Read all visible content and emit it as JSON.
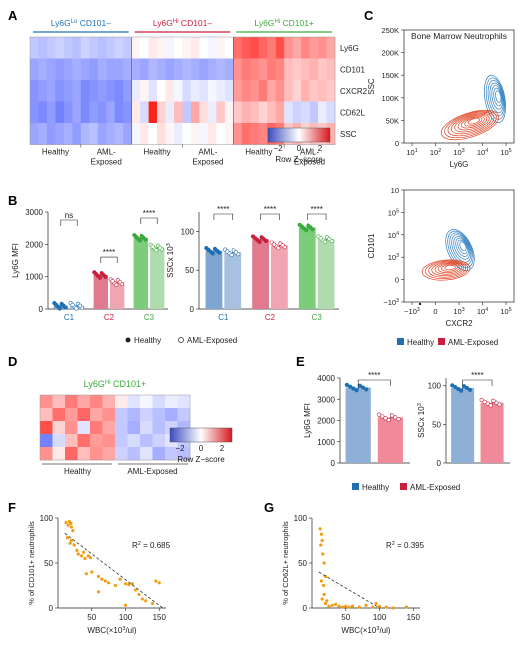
{
  "panel_letters": {
    "a": "A",
    "b": "B",
    "c": "C",
    "d": "D",
    "e": "E",
    "f": "F",
    "g": "G"
  },
  "colors": {
    "blue": "#1f6fb4",
    "red": "#c8203a",
    "green": "#3aaa3a",
    "bar_blue": "#8fb0d6",
    "bar_red": "#f08a9a",
    "bar_green": "#8fd08f",
    "orange": "#f39c12",
    "heat_low": "#3b4cc0",
    "heat_high": "#d7191c"
  },
  "heatmap_a": {
    "groups": [
      "Ly6G",
      "CD101–",
      "Ly6G",
      "CD101–",
      "Ly6G",
      "CD101+"
    ],
    "group_labels": [
      {
        "name": "Ly6G",
        "sup": "Lo",
        "rest": " CD101–"
      },
      {
        "name": "Ly6G",
        "sup": "Hi",
        "rest": " CD101–"
      },
      {
        "name": "Ly6G",
        "sup": "Hi",
        "rest": " CD101+"
      }
    ],
    "rows": [
      "Ly6G",
      "CD101",
      "CXCR2",
      "CD62L",
      "SSC"
    ],
    "xlabels": [
      "Healthy",
      "AML-\nExposed",
      "Healthy",
      "AML-\nExposed",
      "Healthy",
      "AML-\nExposed"
    ],
    "legend_ticks": [
      "−2",
      "0",
      "2"
    ],
    "legend_title": "Row Z−score",
    "values": [
      [
        -0.6,
        -0.7,
        -0.6,
        -0.5,
        -0.6,
        -0.7,
        -0.5,
        -0.6,
        -0.7,
        -0.6,
        -0.5,
        -0.6,
        0.1,
        0.0,
        0.2,
        0.1,
        -0.1,
        0.0,
        0.1,
        0.2,
        0.0,
        -0.1,
        0.1,
        0.0,
        1.3,
        1.5,
        1.6,
        1.4,
        1.2,
        1.6,
        1.0,
        0.8,
        1.1,
        0.9,
        1.0,
        0.8
      ],
      [
        -1.0,
        -0.9,
        -1.0,
        -1.1,
        -1.0,
        -0.9,
        -1.0,
        -1.1,
        -0.9,
        -1.0,
        -1.0,
        -0.9,
        -0.9,
        -1.0,
        -0.8,
        -0.9,
        -1.0,
        -0.9,
        -0.8,
        -0.9,
        -1.0,
        -0.9,
        -0.8,
        -0.9,
        1.0,
        1.2,
        1.1,
        1.0,
        1.2,
        1.1,
        0.6,
        0.5,
        0.6,
        0.7,
        0.5,
        0.6
      ],
      [
        -1.2,
        -1.1,
        -1.0,
        -1.2,
        -1.1,
        -1.0,
        -1.3,
        -1.2,
        -1.1,
        -1.2,
        -1.3,
        -1.1,
        -0.2,
        0.1,
        -0.3,
        0.0,
        0.2,
        -0.1,
        -0.4,
        -0.2,
        -0.3,
        -0.1,
        -0.2,
        -0.3,
        0.9,
        1.1,
        1.0,
        1.2,
        0.8,
        1.0,
        0.6,
        0.4,
        0.7,
        0.5,
        0.6,
        0.5
      ],
      [
        -1.2,
        -1.3,
        -1.1,
        -1.4,
        -1.2,
        -1.0,
        -1.3,
        -1.1,
        -1.2,
        -1.0,
        -1.3,
        -1.2,
        0.2,
        -0.4,
        2.0,
        0.4,
        -0.2,
        0.6,
        -0.6,
        0.8,
        0.3,
        -0.2,
        0.5,
        0.1,
        0.5,
        0.7,
        0.6,
        0.4,
        0.6,
        0.8,
        -0.3,
        -0.5,
        -0.4,
        -0.6,
        -0.2,
        -0.4
      ],
      [
        -1.0,
        -0.9,
        -1.1,
        -1.0,
        -0.9,
        -1.1,
        -0.8,
        -0.7,
        -1.0,
        -0.9,
        -0.8,
        -1.0,
        -0.1,
        0.2,
        0.0,
        0.3,
        0.1,
        -0.2,
        0.0,
        0.1,
        -0.1,
        0.2,
        0.0,
        0.1,
        1.0,
        1.3,
        1.2,
        1.1,
        1.4,
        1.2,
        0.5,
        0.7,
        0.4,
        0.6,
        0.5,
        0.7
      ]
    ]
  },
  "panel_c": {
    "top": {
      "title": "Bone Marrow Neutrophils",
      "ylabel": "SSC",
      "xlabel": "Ly6G",
      "yticks": [
        "0",
        "50K",
        "100K",
        "150K",
        "200K",
        "250K"
      ],
      "xticks": [
        "10",
        "10",
        "10",
        "10",
        "10"
      ],
      "xtick_exps": [
        "1",
        "2",
        "3",
        "4",
        "5"
      ]
    },
    "bottom": {
      "ylabel": "CD101",
      "xlabel": "CXCR2",
      "yticks": [
        "−10",
        "0",
        "10",
        "10",
        "10",
        "10"
      ],
      "ytick_exps": [
        "3",
        "",
        "3",
        "4",
        "5",
        ""
      ],
      "xticks": [
        "−10",
        "0",
        "10",
        "10",
        "10"
      ],
      "xtick_exps": [
        "3",
        "",
        "3",
        "4",
        "5"
      ]
    },
    "legend": [
      "Healthy",
      "AML-Exposed"
    ]
  },
  "chart_data": [
    {
      "type": "bar",
      "panel": "B-left",
      "ylabel": "Ly6G MFI",
      "categories": [
        "C1",
        "C2",
        "C3"
      ],
      "ylim": [
        0,
        3000
      ],
      "yticks": [
        "0",
        "1000",
        "2000",
        "3000"
      ],
      "series": [
        {
          "name": "Healthy",
          "values": [
            100,
            1050,
            2200
          ]
        },
        {
          "name": "AML-Exposed",
          "values": [
            100,
            830,
            1900
          ]
        }
      ],
      "significance": [
        "ns",
        "****",
        "****"
      ]
    },
    {
      "type": "bar",
      "panel": "B-right",
      "ylabel": "SSCx 10",
      "ylabel_exp": "3",
      "categories": [
        "C1",
        "C2",
        "C3"
      ],
      "ylim": [
        0,
        125
      ],
      "yticks": [
        "0",
        "50",
        "100"
      ],
      "series": [
        {
          "name": "Healthy",
          "values": [
            75,
            90,
            105
          ]
        },
        {
          "name": "AML-Exposed",
          "values": [
            73,
            82,
            90
          ]
        }
      ],
      "significance": [
        "****",
        "****",
        "****"
      ]
    },
    {
      "type": "bar",
      "panel": "E-left",
      "ylabel": "Ly6G MFI",
      "categories": [
        "Healthy",
        "AML-Exposed"
      ],
      "ylim": [
        0,
        4000
      ],
      "yticks": [
        "0",
        "1000",
        "2000",
        "3000",
        "4000"
      ],
      "values": [
        3550,
        2150
      ],
      "significance": "****"
    },
    {
      "type": "bar",
      "panel": "E-right",
      "ylabel": "SSCx 10",
      "ylabel_exp": "3",
      "categories": [
        "Healthy",
        "AML-Exposed"
      ],
      "ylim": [
        0,
        110
      ],
      "yticks": [
        "0",
        "50",
        "100"
      ],
      "values": [
        97,
        78
      ],
      "significance": "****"
    },
    {
      "type": "scatter",
      "panel": "F",
      "xlabel": "WBC(×10",
      "xlabel_exp": "3",
      "xlabel_tail": "/ul)",
      "ylabel": "% of CD101+ neutrophils",
      "r2": "R",
      "r2_exp": "2",
      "r2_val": " = 0.685",
      "xlim": [
        0,
        160
      ],
      "ylim": [
        0,
        100
      ],
      "xticks": [
        "50",
        "100",
        "150"
      ],
      "yticks": [
        "0",
        "50",
        "100"
      ],
      "points": [
        [
          12,
          95
        ],
        [
          15,
          92
        ],
        [
          17,
          96
        ],
        [
          19,
          94
        ],
        [
          20,
          90
        ],
        [
          22,
          86
        ],
        [
          14,
          78
        ],
        [
          18,
          72
        ],
        [
          20,
          75
        ],
        [
          24,
          70
        ],
        [
          28,
          64
        ],
        [
          30,
          60
        ],
        [
          35,
          58
        ],
        [
          38,
          62
        ],
        [
          40,
          55
        ],
        [
          45,
          58
        ],
        [
          48,
          56
        ],
        [
          50,
          40
        ],
        [
          42,
          38
        ],
        [
          60,
          35
        ],
        [
          65,
          32
        ],
        [
          70,
          30
        ],
        [
          75,
          28
        ],
        [
          85,
          25
        ],
        [
          92,
          32
        ],
        [
          100,
          27
        ],
        [
          105,
          26
        ],
        [
          110,
          27
        ],
        [
          115,
          20
        ],
        [
          120,
          15
        ],
        [
          125,
          10
        ],
        [
          130,
          8
        ],
        [
          140,
          5
        ],
        [
          145,
          30
        ],
        [
          150,
          28
        ],
        [
          100,
          3
        ],
        [
          60,
          18
        ]
      ],
      "trend": [
        [
          10,
          83
        ],
        [
          155,
          0
        ]
      ]
    },
    {
      "type": "scatter",
      "panel": "G",
      "xlabel": "WBC(×10",
      "xlabel_exp": "3",
      "xlabel_tail": "/ul)",
      "ylabel": "% of CD62L+ neutrophils",
      "r2": "R",
      "r2_exp": "2",
      "r2_val": " = 0.395",
      "xlim": [
        0,
        160
      ],
      "ylim": [
        0,
        100
      ],
      "xticks": [
        "50",
        "100",
        "150"
      ],
      "yticks": [
        "0",
        "50",
        "100"
      ],
      "points": [
        [
          12,
          88
        ],
        [
          14,
          82
        ],
        [
          15,
          75
        ],
        [
          13,
          70
        ],
        [
          16,
          60
        ],
        [
          18,
          50
        ],
        [
          20,
          35
        ],
        [
          14,
          30
        ],
        [
          17,
          25
        ],
        [
          15,
          10
        ],
        [
          20,
          5
        ],
        [
          25,
          2
        ],
        [
          30,
          3
        ],
        [
          35,
          4
        ],
        [
          40,
          2
        ],
        [
          45,
          1
        ],
        [
          50,
          2
        ],
        [
          55,
          1
        ],
        [
          60,
          2
        ],
        [
          70,
          1
        ],
        [
          80,
          3
        ],
        [
          90,
          1
        ],
        [
          95,
          5
        ],
        [
          100,
          2
        ],
        [
          110,
          1
        ],
        [
          120,
          0
        ],
        [
          140,
          1
        ],
        [
          18,
          15
        ],
        [
          22,
          8
        ]
      ],
      "trend": [
        [
          10,
          40
        ],
        [
          100,
          0
        ]
      ]
    }
  ],
  "legend_b": [
    "Healthy",
    "AML-Exposed"
  ],
  "heatmap_d": {
    "title": "Ly6G",
    "title_sup": "Hi",
    "title_rest": " CD101+",
    "xlabels": [
      "Healthy",
      "AML-Exposed"
    ],
    "legend_ticks": [
      "−2",
      "0",
      "2"
    ],
    "legend_title": "Row Z−score",
    "values": [
      [
        1.0,
        0.6,
        1.2,
        0.8,
        1.1,
        0.7,
        0.2,
        -0.3,
        -0.1,
        -0.4,
        -0.2,
        -0.3
      ],
      [
        0.6,
        1.3,
        0.9,
        1.4,
        0.8,
        1.0,
        -0.6,
        -0.8,
        -0.5,
        -0.7,
        -0.9,
        -0.6
      ],
      [
        1.6,
        0.4,
        1.0,
        -0.3,
        1.2,
        0.8,
        -0.6,
        -0.9,
        -0.4,
        -0.7,
        -0.5,
        -0.8
      ],
      [
        -1.4,
        -0.4,
        0.6,
        1.3,
        0.9,
        1.0,
        -0.6,
        -0.4,
        -0.7,
        -0.5,
        -0.3,
        -0.6
      ],
      [
        1.0,
        0.2,
        1.4,
        0.6,
        1.0,
        0.8,
        -0.5,
        -0.7,
        -0.3,
        -0.9,
        -0.6,
        -0.7
      ]
    ]
  },
  "legend_e": [
    "Healthy",
    "AML-Exposed"
  ]
}
